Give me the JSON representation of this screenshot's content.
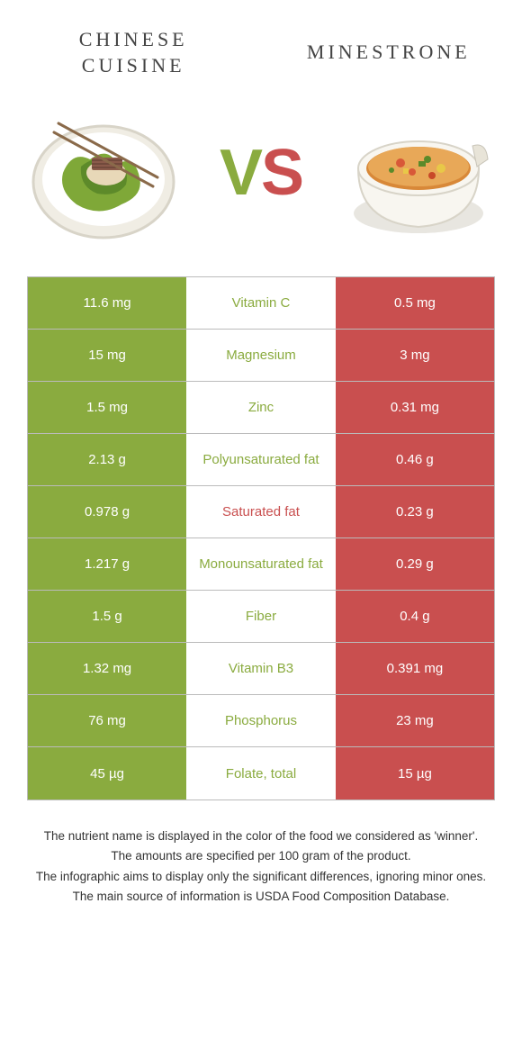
{
  "header": {
    "food1": "Chinese\ncuisine",
    "food2": "Minestrone",
    "vs_v": "V",
    "vs_s": "S"
  },
  "colors": {
    "food1_bar": "#8aab3f",
    "food2_bar": "#c94f4f",
    "food1_text": "#8aab3f",
    "food2_text": "#c94f4f",
    "border": "#bbbbbb"
  },
  "rows": [
    {
      "left": "11.6 mg",
      "mid": "Vitamin C",
      "right": "0.5 mg",
      "mid_color": "#8aab3f"
    },
    {
      "left": "15 mg",
      "mid": "Magnesium",
      "right": "3 mg",
      "mid_color": "#8aab3f"
    },
    {
      "left": "1.5 mg",
      "mid": "Zinc",
      "right": "0.31 mg",
      "mid_color": "#8aab3f"
    },
    {
      "left": "2.13 g",
      "mid": "Polyunsaturated fat",
      "right": "0.46 g",
      "mid_color": "#8aab3f"
    },
    {
      "left": "0.978 g",
      "mid": "Saturated fat",
      "right": "0.23 g",
      "mid_color": "#c94f4f"
    },
    {
      "left": "1.217 g",
      "mid": "Monounsaturated fat",
      "right": "0.29 g",
      "mid_color": "#8aab3f"
    },
    {
      "left": "1.5 g",
      "mid": "Fiber",
      "right": "0.4 g",
      "mid_color": "#8aab3f"
    },
    {
      "left": "1.32 mg",
      "mid": "Vitamin B3",
      "right": "0.391 mg",
      "mid_color": "#8aab3f"
    },
    {
      "left": "76 mg",
      "mid": "Phosphorus",
      "right": "23 mg",
      "mid_color": "#8aab3f"
    },
    {
      "left": "45 µg",
      "mid": "Folate, total",
      "right": "15 µg",
      "mid_color": "#8aab3f"
    }
  ],
  "notes": [
    "The nutrient name is displayed in the color of the food we considered as 'winner'.",
    "The amounts are specified per 100 gram of the product.",
    "The infographic aims to display only the significant differences, ignoring minor ones.",
    "The main source of information is USDA Food Composition Database."
  ]
}
